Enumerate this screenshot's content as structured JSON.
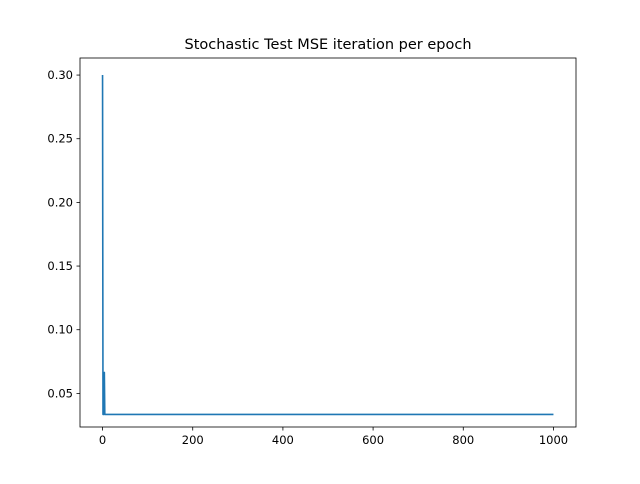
{
  "chart_data": {
    "type": "line",
    "title": "Stochastic Test MSE iteration per epoch",
    "xlabel": "",
    "ylabel": "",
    "xlim": [
      -50,
      1050
    ],
    "ylim": [
      0.0236,
      0.3134
    ],
    "x_ticks": [
      0,
      200,
      400,
      600,
      800,
      1000
    ],
    "x_tick_labels": [
      "0",
      "200",
      "400",
      "600",
      "800",
      "1000"
    ],
    "y_ticks": [
      0.05,
      0.1,
      0.15,
      0.2,
      0.25,
      0.3
    ],
    "y_tick_labels": [
      "0.05",
      "0.10",
      "0.15",
      "0.20",
      "0.25",
      "0.30"
    ],
    "grid": false,
    "series": [
      {
        "color": "#1f77b4",
        "x": [
          0,
          1,
          2,
          3,
          4,
          5,
          6,
          10,
          50,
          100,
          200,
          400,
          600,
          800,
          1000
        ],
        "y": [
          0.3,
          0.0335,
          0.0335,
          0.0335,
          0.0665,
          0.0335,
          0.0335,
          0.0335,
          0.0335,
          0.0335,
          0.0335,
          0.0335,
          0.0335,
          0.0335,
          0.0335
        ]
      }
    ]
  }
}
